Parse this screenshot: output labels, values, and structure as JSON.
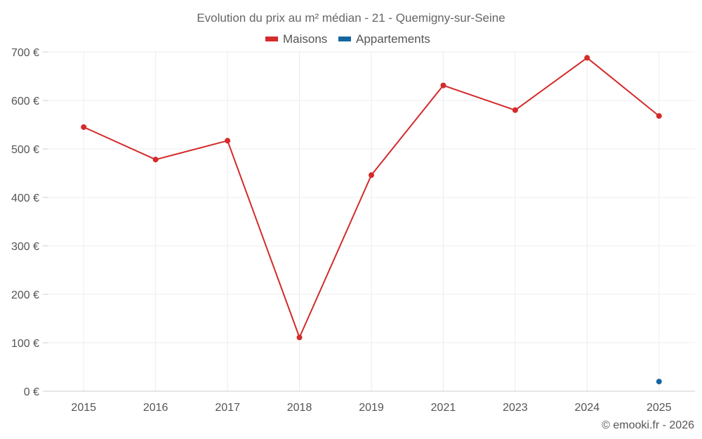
{
  "chart_data": {
    "type": "line",
    "title": "Evolution du prix au m² médian - 21 - Quemigny-sur-Seine",
    "categories": [
      "2015",
      "2016",
      "2017",
      "2018",
      "2019",
      "2021",
      "2023",
      "2024",
      "2025"
    ],
    "series": [
      {
        "name": "Maisons",
        "color": "#d42a2a",
        "values": [
          545,
          478,
          517,
          111,
          446,
          631,
          580,
          688,
          568
        ]
      },
      {
        "name": "Appartements",
        "color": "#1565a0",
        "values": [
          null,
          null,
          null,
          null,
          null,
          null,
          null,
          null,
          20
        ]
      }
    ],
    "ylim": [
      0,
      700
    ],
    "yticks": [
      0,
      100,
      200,
      300,
      400,
      500,
      600,
      700
    ],
    "y_unit": "€",
    "xlabel": "",
    "ylabel": "",
    "grid": true,
    "legend_position": "top-center"
  },
  "credit": "© emooki.fr - 2026"
}
